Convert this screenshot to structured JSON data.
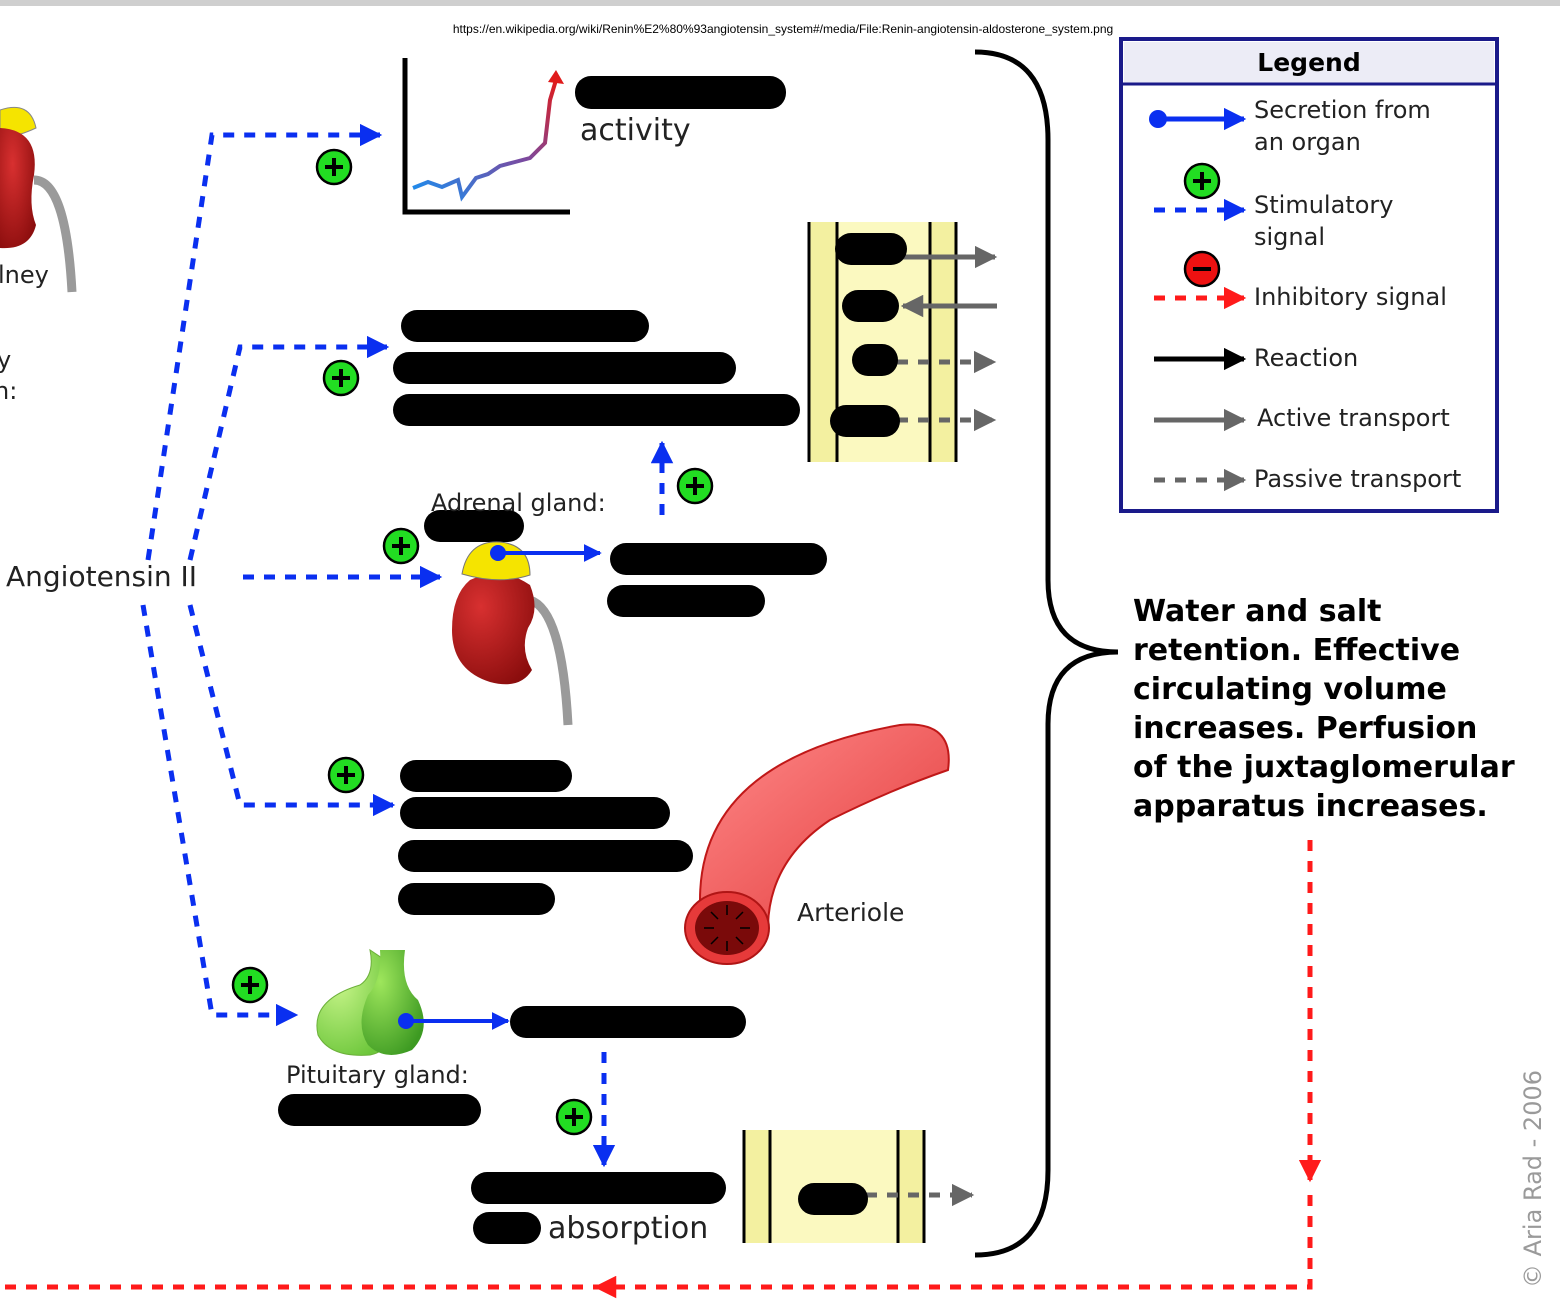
{
  "source_url": "https://en.wikipedia.org/wiki/Renin%E2%80%93angiotensin_system#/media/File:Renin-angiotensin-aldosterone_system.png",
  "labels": {
    "kidney_partial": "lney",
    "left_partial_1": "y",
    "left_partial_2": "n:",
    "angiotensin": "Angiotensin II",
    "activity": "activity",
    "adrenal_gland": "Adrenal gland:",
    "arteriole": "Arteriole",
    "pituitary_gland": "Pituitary gland:",
    "absorption": "absorption",
    "result_lines": [
      "Water and salt",
      "retention. Effective",
      "circulating volume",
      "increases. Perfusion",
      "of the juxtaglomerular",
      "apparatus increases."
    ],
    "copyright": "© Aria Rad - 2006"
  },
  "legend": {
    "title": "Legend",
    "items": [
      {
        "lines": [
          "Secretion from",
          "an organ"
        ],
        "style": "secretion",
        "color": "#0a2ff0"
      },
      {
        "lines": [
          "Stimulatory",
          "signal"
        ],
        "style": "stimulatory",
        "color": "#0a2ff0"
      },
      {
        "lines": [
          "Inhibitory signal"
        ],
        "style": "inhibitory",
        "color": "#ff1a1a"
      },
      {
        "lines": [
          "Reaction"
        ],
        "style": "reaction",
        "color": "#000000"
      },
      {
        "lines": [
          "Active transport"
        ],
        "style": "active",
        "color": "#666666"
      },
      {
        "lines": [
          "Passive transport"
        ],
        "style": "passive",
        "color": "#666666"
      }
    ]
  },
  "colors": {
    "stimulatory": "#0a2ff0",
    "inhibitory": "#ff1a1a",
    "plus_badge": "#22dd22",
    "minus_badge": "#ee1111",
    "kidney": "#b01a1a",
    "adrenal": "#f5e400",
    "vessel_wall": "#f8f6b8",
    "pituitary": "#86d84a"
  }
}
